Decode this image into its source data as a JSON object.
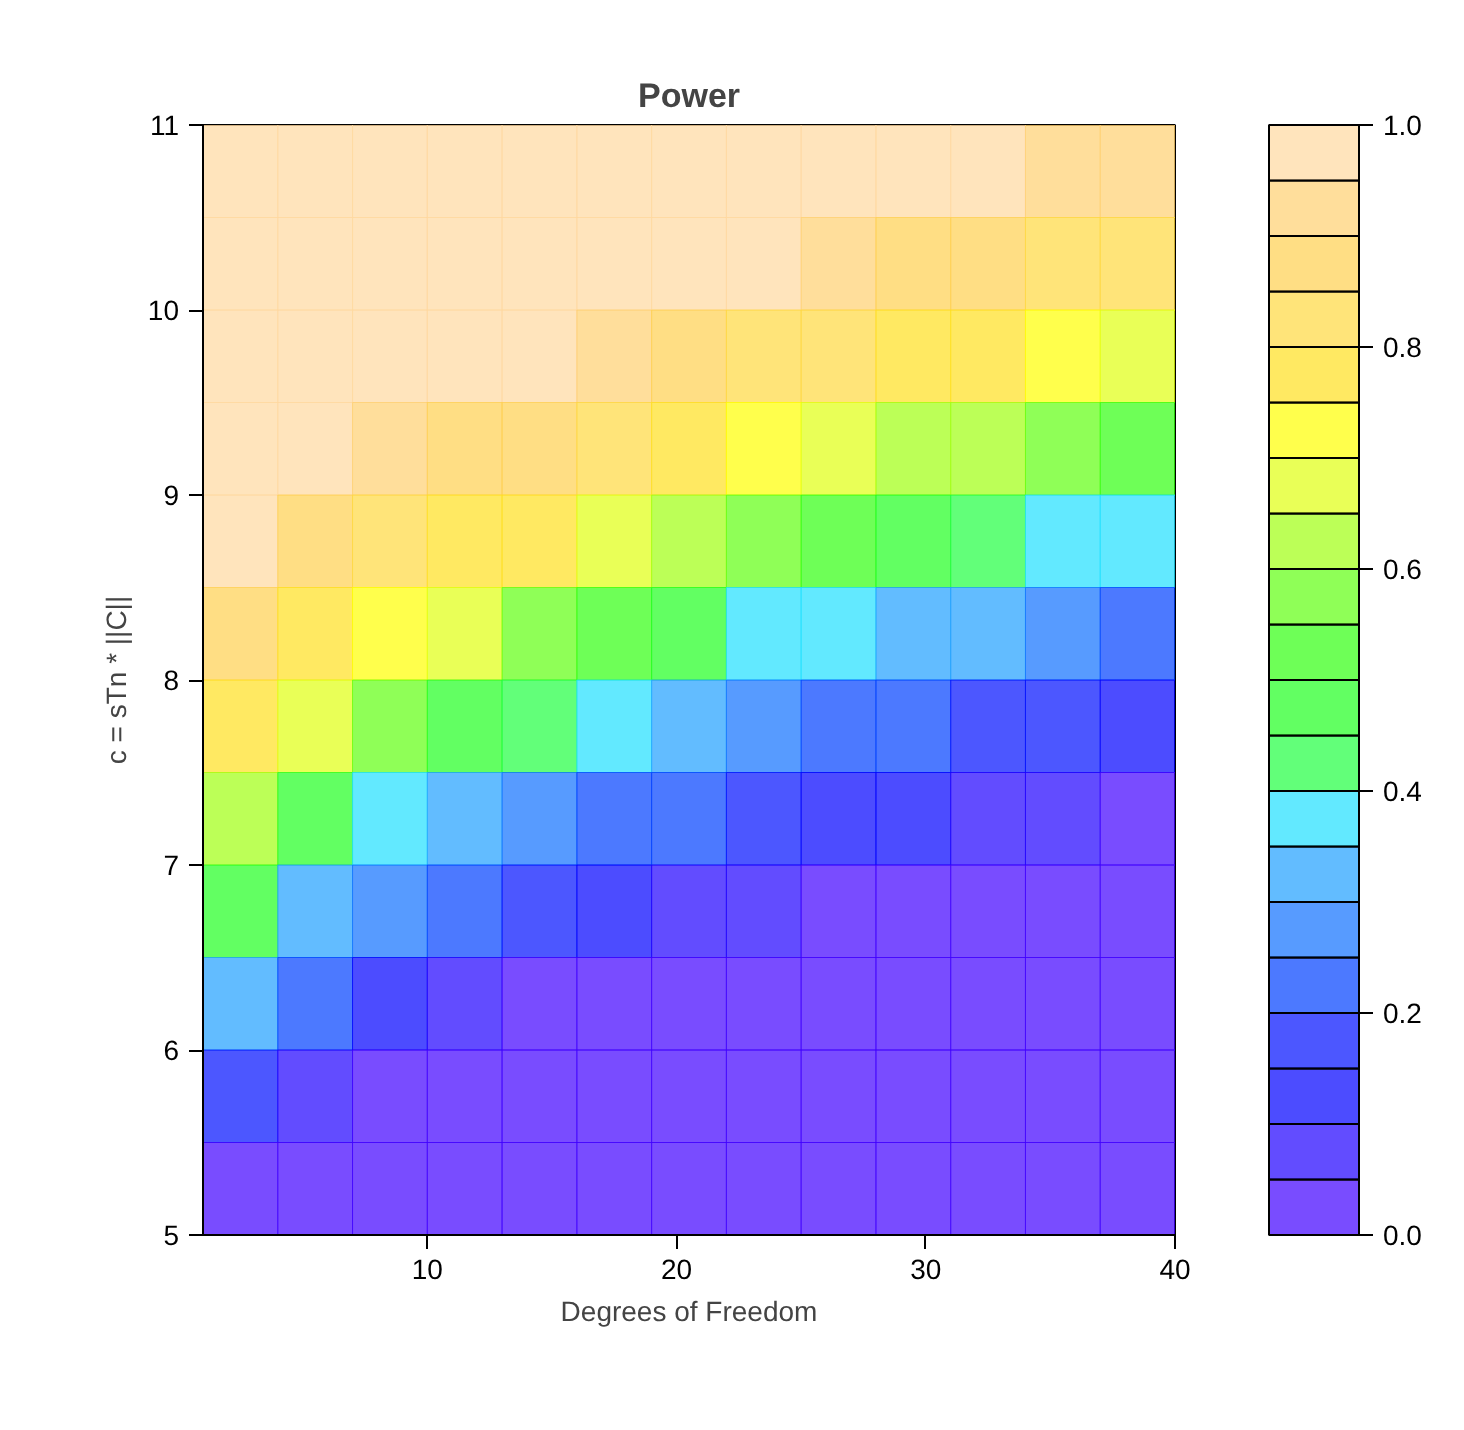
{
  "chart_data": {
    "type": "heatmap",
    "title": "Power",
    "xlabel": "Degrees of Freedom",
    "ylabel": "c = sTn * ||C||",
    "x": [
      2.5,
      5.5,
      8.5,
      11.5,
      14.5,
      17.5,
      20.5,
      23.5,
      26.5,
      29.5,
      32.5,
      35.5,
      38.5
    ],
    "y": [
      10.75,
      10.25,
      9.75,
      9.25,
      8.75,
      8.25,
      7.75,
      7.25,
      6.75,
      6.25,
      5.75,
      5.25
    ],
    "cells": [
      [
        0.98,
        0.98,
        0.98,
        0.98,
        0.98,
        0.98,
        0.98,
        0.96,
        0.96,
        0.96,
        0.96,
        0.94,
        0.91
      ],
      [
        0.98,
        0.98,
        0.98,
        0.98,
        0.96,
        0.96,
        0.96,
        0.95,
        0.91,
        0.89,
        0.86,
        0.83,
        0.81
      ],
      [
        0.98,
        0.98,
        0.96,
        0.96,
        0.95,
        0.91,
        0.88,
        0.84,
        0.81,
        0.78,
        0.76,
        0.73,
        0.69
      ],
      [
        0.98,
        0.96,
        0.93,
        0.89,
        0.85,
        0.81,
        0.77,
        0.74,
        0.69,
        0.64,
        0.6,
        0.55,
        0.51
      ],
      [
        0.96,
        0.89,
        0.83,
        0.79,
        0.75,
        0.69,
        0.63,
        0.57,
        0.52,
        0.47,
        0.42,
        0.38,
        0.35
      ],
      [
        0.86,
        0.79,
        0.73,
        0.66,
        0.58,
        0.52,
        0.45,
        0.39,
        0.35,
        0.32,
        0.3,
        0.27,
        0.24
      ],
      [
        0.76,
        0.66,
        0.56,
        0.48,
        0.4,
        0.35,
        0.31,
        0.27,
        0.24,
        0.21,
        0.19,
        0.16,
        0.13
      ],
      [
        0.62,
        0.48,
        0.38,
        0.33,
        0.28,
        0.24,
        0.2,
        0.16,
        0.13,
        0.1,
        0.08,
        0.05,
        0.03
      ],
      [
        0.45,
        0.33,
        0.26,
        0.21,
        0.16,
        0.12,
        0.09,
        0.05,
        0.03,
        0.03,
        0.03,
        0.03,
        0.02
      ],
      [
        0.3,
        0.21,
        0.14,
        0.09,
        0.03,
        0.03,
        0.03,
        0.03,
        0.02,
        0.02,
        0.02,
        0.02,
        0.02
      ],
      [
        0.17,
        0.09,
        0.03,
        0.03,
        0.02,
        0.02,
        0.02,
        0.02,
        0.02,
        0.02,
        0.02,
        0.02,
        0.02
      ],
      [
        0.03,
        0.03,
        0.02,
        0.02,
        0.02,
        0.02,
        0.02,
        0.02,
        0.02,
        0.02,
        0.02,
        0.02,
        0.02
      ]
    ],
    "colors": [
      "#4000ff",
      "#2000ff",
      "#0000ff",
      "#0010ff",
      "#0040ff",
      "#1070ff",
      "#20a0ff",
      "#20e0ff",
      "#20ff40",
      "#20ff20",
      "#30ff10",
      "#60ff10",
      "#a0ff10",
      "#e0ff10",
      "#ffff00",
      "#ffe020",
      "#ffd840",
      "#ffd050",
      "#ffd070",
      "#ffd8a0"
    ],
    "clim": [
      0,
      1
    ],
    "cticks": [
      {
        "value": 0,
        "label": "0.0"
      },
      {
        "value": 0.2,
        "label": "0.2"
      },
      {
        "value": 0.4,
        "label": "0.4"
      },
      {
        "value": 0.6,
        "label": "0.6"
      },
      {
        "value": 0.8,
        "label": "0.8"
      },
      {
        "value": 1,
        "label": "1.0"
      }
    ],
    "xlim": [
      1,
      40
    ],
    "xticks": [
      10,
      20,
      30,
      40
    ],
    "ylim": [
      5,
      11
    ],
    "yticks": [
      5,
      6,
      7,
      8,
      9,
      10,
      11
    ],
    "grid": false
  }
}
